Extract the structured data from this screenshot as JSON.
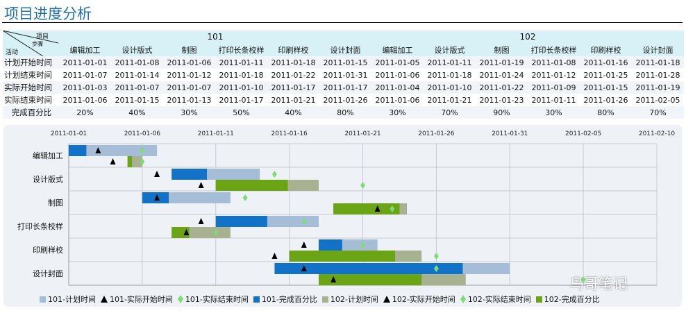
{
  "title": "项目进度分析",
  "table": {
    "corner": {
      "top": "项目",
      "mid": "步骤",
      "bottom": "活动"
    },
    "projects": [
      "101",
      "102"
    ],
    "steps": [
      "编辑加工",
      "设计版式",
      "制图",
      "打印长条校样",
      "印刷样校",
      "设计封面",
      "编辑加工",
      "设计版式",
      "制图",
      "打印长条校样",
      "印刷样校",
      "设计封面"
    ],
    "rows": [
      {
        "label": "计划开始时间",
        "values": [
          "2011-01-01",
          "2011-01-08",
          "2011-01-06",
          "2011-01-11",
          "2011-01-18",
          "2011-01-15",
          "2011-01-05",
          "2011-01-11",
          "2011-01-19",
          "2011-01-08",
          "2011-01-16",
          "2011-01-18"
        ]
      },
      {
        "label": "计划结束时间",
        "values": [
          "2011-01-07",
          "2011-01-14",
          "2011-01-12",
          "2011-01-18",
          "2011-01-22",
          "2011-01-31",
          "2011-01-06",
          "2011-01-18",
          "2011-01-24",
          "2011-01-12",
          "2011-01-25",
          "2011-01-28"
        ]
      },
      {
        "label": "实际开始时间",
        "values": [
          "2011-01-03",
          "2011-01-07",
          "2011-01-07",
          "2011-01-10",
          "2011-01-17",
          "2011-01-17",
          "2011-01-04",
          "2011-01-10",
          "2011-01-22",
          "2011-01-09",
          "2011-01-15",
          "2011-01-19"
        ]
      },
      {
        "label": "实际结束时间",
        "values": [
          "2011-01-06",
          "2011-01-15",
          "2011-01-13",
          "2011-01-17",
          "2011-01-21",
          "2011-01-26",
          "2011-01-06",
          "2011-01-21",
          "2011-01-23",
          "2011-01-11",
          "2011-01-26",
          "2011-02-05"
        ]
      },
      {
        "label": "完成百分比",
        "values": [
          "20%",
          "40%",
          "30%",
          "50%",
          "40%",
          "80%",
          "30%",
          "70%",
          "90%",
          "30%",
          "80%",
          "70%"
        ]
      }
    ]
  },
  "chart_data": {
    "type": "gantt",
    "x_ticks": [
      "2011-01-01",
      "2011-01-06",
      "2011-01-11",
      "2011-01-16",
      "2011-01-21",
      "2011-01-26",
      "2011-01-31",
      "2011-02-05",
      "2011-02-10"
    ],
    "xlim": [
      "2011-01-01",
      "2011-02-10"
    ],
    "categories": [
      "编辑加工",
      "设计版式",
      "制图",
      "打印长条校样",
      "印刷样校",
      "设计封面"
    ],
    "series": [
      {
        "project": "101",
        "plan_start": [
          "2011-01-01",
          "2011-01-08",
          "2011-01-06",
          "2011-01-11",
          "2011-01-18",
          "2011-01-15"
        ],
        "plan_end": [
          "2011-01-07",
          "2011-01-14",
          "2011-01-12",
          "2011-01-18",
          "2011-01-22",
          "2011-01-31"
        ],
        "actual_start": [
          "2011-01-03",
          "2011-01-07",
          "2011-01-07",
          "2011-01-10",
          "2011-01-17",
          "2011-01-17"
        ],
        "actual_end": [
          "2011-01-06",
          "2011-01-15",
          "2011-01-13",
          "2011-01-17",
          "2011-01-21",
          "2011-01-26"
        ],
        "pct": [
          20,
          40,
          30,
          50,
          40,
          80
        ],
        "plan_color": "#a6bdd7",
        "progress_color": "#1272c8"
      },
      {
        "project": "102",
        "plan_start": [
          "2011-01-05",
          "2011-01-11",
          "2011-01-19",
          "2011-01-08",
          "2011-01-16",
          "2011-01-18"
        ],
        "plan_end": [
          "2011-01-06",
          "2011-01-18",
          "2011-01-24",
          "2011-01-12",
          "2011-01-25",
          "2011-01-28"
        ],
        "actual_start": [
          "2011-01-04",
          "2011-01-10",
          "2011-01-22",
          "2011-01-09",
          "2011-01-15",
          "2011-01-19"
        ],
        "actual_end": [
          "2011-01-06",
          "2011-01-21",
          "2011-01-23",
          "2011-01-11",
          "2011-01-26",
          "2011-02-05"
        ],
        "pct": [
          30,
          70,
          90,
          30,
          80,
          70
        ],
        "plan_color": "#a9b290",
        "progress_color": "#6ba414"
      }
    ],
    "marker_colors": {
      "start": "#000000",
      "end": "#7ddc78"
    },
    "legend": [
      "101-计划时间",
      "101-实际开始时间",
      "101-实际结束时间",
      "101-完成百分比",
      "102-计划时间",
      "102-实际开始时间",
      "102-实际结束时间",
      "102-完成百分比"
    ],
    "legend_position": "bottom"
  },
  "watermark": "鸟哥笔记"
}
